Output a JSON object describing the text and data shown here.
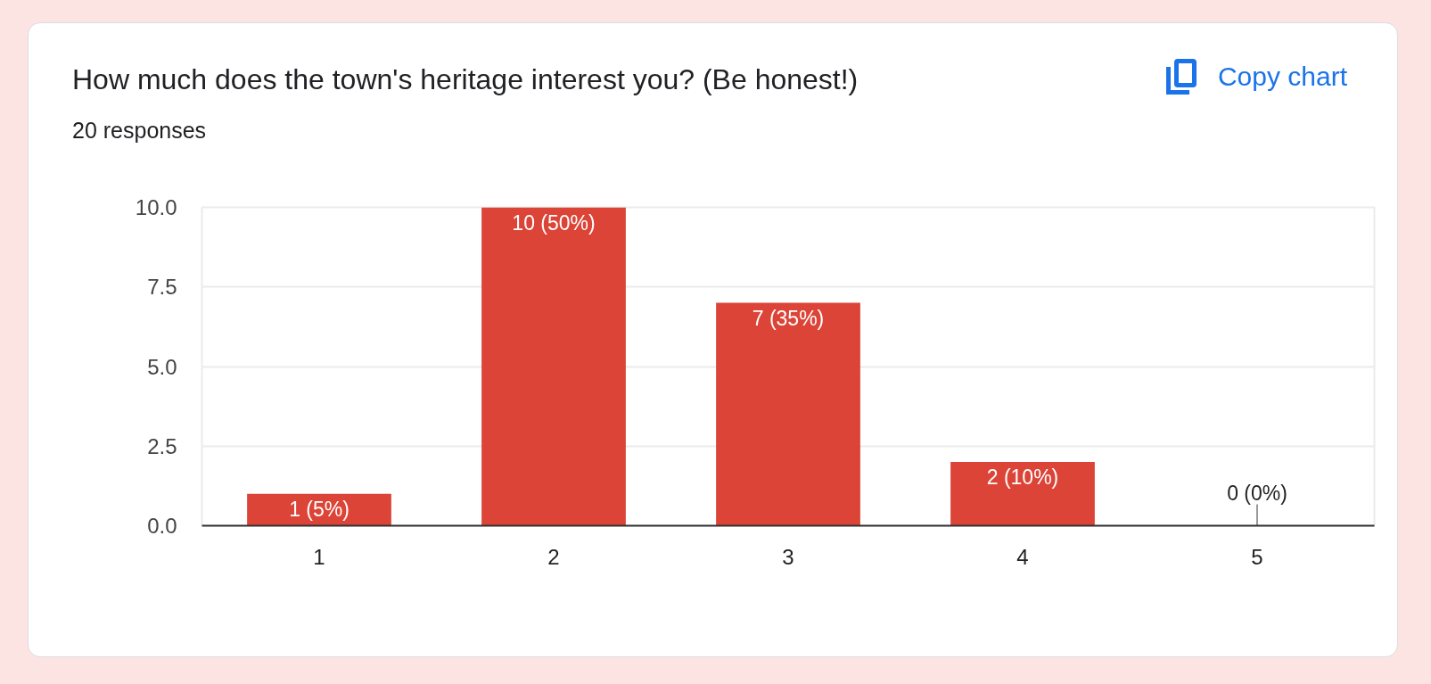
{
  "chart_data": {
    "type": "bar",
    "title": "How much does the town's heritage interest you? (Be honest!)",
    "subtitle": "20 responses",
    "annotations": [
      "Copy chart"
    ],
    "categories": [
      "1",
      "2",
      "3",
      "4",
      "5"
    ],
    "values": [
      1,
      10,
      7,
      2,
      0
    ],
    "color": "#db4437",
    "value_labels": [
      "1 (5%)",
      "10 (50%)",
      "7 (35%)",
      "2 (10%)",
      "0 (0%)"
    ],
    "ylim": [
      0,
      10
    ],
    "yticks": [
      {
        "value": 0,
        "label": "0.0"
      },
      2.5,
      {
        "value": 5,
        "label": "5.0"
      },
      7.5,
      {
        "value": 10,
        "label": "10.0"
      }
    ],
    "grid": "y"
  }
}
